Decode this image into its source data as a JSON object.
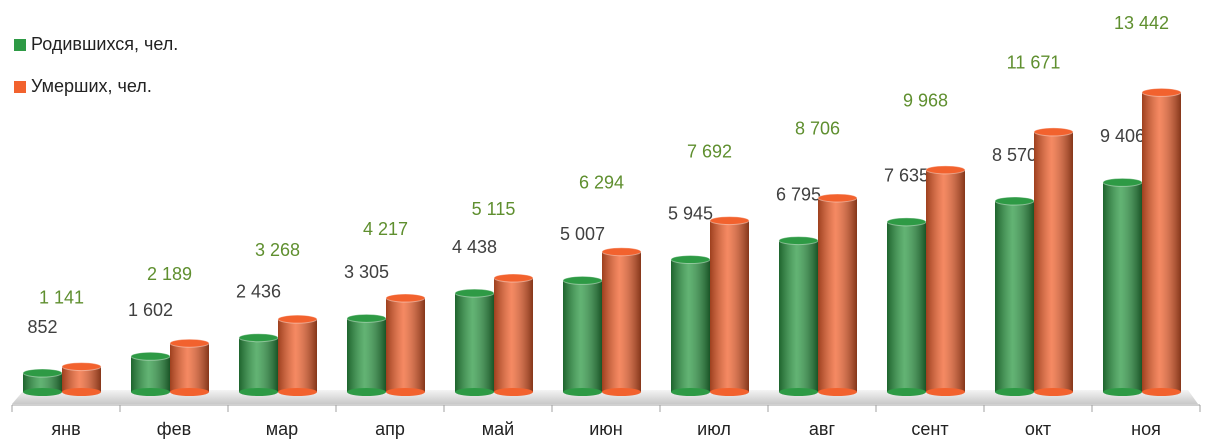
{
  "chart_data": {
    "type": "bar",
    "categories": [
      "янв",
      "фев",
      "мар",
      "апр",
      "май",
      "июн",
      "июл",
      "авг",
      "сент",
      "окт",
      "ноя"
    ],
    "series": [
      {
        "name": "Родившихся, чел.",
        "color": "#2e9a45",
        "label_color": "#404040",
        "values": [
          852,
          1602,
          2436,
          3305,
          4438,
          5007,
          5945,
          6795,
          7635,
          8570,
          9406
        ],
        "value_labels": [
          "852",
          "1 602",
          "2 436",
          "3 305",
          "4 438",
          "5 007",
          "5 945",
          "6 795",
          "7 635",
          "8 570",
          "9 406"
        ]
      },
      {
        "name": "Умерших, чел.",
        "color": "#f2622e",
        "label_color": "#5f8f2f",
        "values": [
          1141,
          2189,
          3268,
          4217,
          5115,
          6294,
          7692,
          8706,
          9968,
          11671,
          13442
        ],
        "value_labels": [
          "1 141",
          "2 189",
          "3 268",
          "4 217",
          "5 115",
          "6 294",
          "7 692",
          "8 706",
          "9 968",
          "11 671",
          "13 442"
        ]
      }
    ],
    "ylim": [
      0,
      14000
    ],
    "legend": "top-left"
  }
}
